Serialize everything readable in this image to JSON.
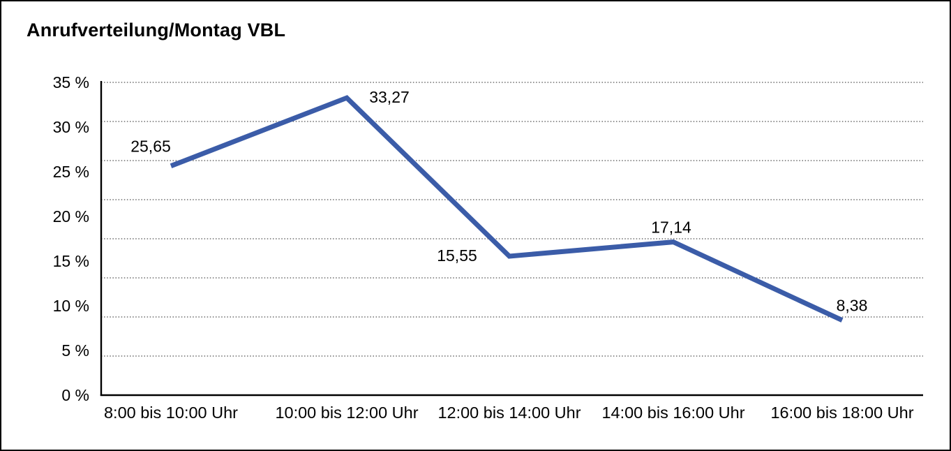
{
  "page": {
    "background": "#ffffff",
    "frame_border_color": "#000000"
  },
  "chart_data": {
    "type": "line",
    "title": "Anrufverteilung/Montag VBL",
    "categories": [
      "8:00 bis 10:00 Uhr",
      "10:00 bis 12:00 Uhr",
      "12:00 bis 14:00 Uhr",
      "14:00 bis 16:00 Uhr",
      "16:00 bis 18:00 Uhr"
    ],
    "values": [
      25.65,
      33.27,
      15.55,
      17.14,
      8.38
    ],
    "value_labels": [
      "25,65",
      "33,27",
      "15,55",
      "17,14",
      "8,38"
    ],
    "y_ticks": [
      {
        "value": 35,
        "label": "35 %"
      },
      {
        "value": 30,
        "label": "30 %"
      },
      {
        "value": 25,
        "label": "25 %"
      },
      {
        "value": 20,
        "label": "20 %"
      },
      {
        "value": 15,
        "label": "15 %"
      },
      {
        "value": 10,
        "label": "10 %"
      },
      {
        "value": 5,
        "label": "5 %"
      },
      {
        "value": 0,
        "label": "0 %"
      }
    ],
    "ylim": [
      0,
      35
    ],
    "xlabel": "",
    "ylabel": "",
    "legend": "none",
    "grid": "horizontal dotted lines, 8 equal intervals between top line and baseline",
    "line_color": "#3b5ca8",
    "axis_color": "#000000",
    "gridline_color": "#4d4d4d",
    "text_color": "#000000"
  }
}
